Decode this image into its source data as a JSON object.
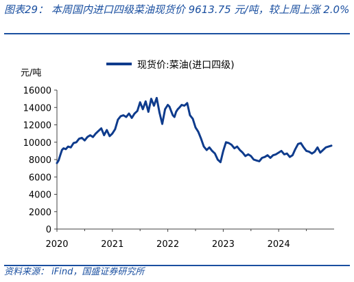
{
  "figure": {
    "title": "图表29： 本周国内进口四级菜油现货价 9613.75 元/吨，较上周上涨 2.0%",
    "source": "资料来源： iFind，国盛证券研究所"
  },
  "colors": {
    "series": "#0e3b8c",
    "accent": "#1a4fa0",
    "axis": "#404040"
  },
  "chart_data": {
    "type": "line",
    "title": "",
    "xlabel": "",
    "ylabel": "元/吨",
    "ylim": [
      0,
      16000
    ],
    "xlim": [
      2020.0,
      2025.0
    ],
    "yticks": [
      0,
      2000,
      4000,
      6000,
      8000,
      10000,
      12000,
      14000,
      16000
    ],
    "xticks": [
      2020,
      2021,
      2022,
      2023,
      2024
    ],
    "legend_position": "top-center",
    "grid": false,
    "series": [
      {
        "name": "现货价:菜油(进口四级)",
        "x": [
          2020.0,
          2020.03,
          2020.06,
          2020.09,
          2020.12,
          2020.16,
          2020.2,
          2020.25,
          2020.3,
          2020.35,
          2020.4,
          2020.45,
          2020.5,
          2020.55,
          2020.6,
          2020.65,
          2020.7,
          2020.75,
          2020.8,
          2020.85,
          2020.9,
          2020.95,
          2021.0,
          2021.05,
          2021.1,
          2021.15,
          2021.2,
          2021.25,
          2021.3,
          2021.35,
          2021.4,
          2021.45,
          2021.5,
          2021.55,
          2021.6,
          2021.65,
          2021.7,
          2021.75,
          2021.8,
          2021.85,
          2021.9,
          2021.95,
          2022.0,
          2022.03,
          2022.06,
          2022.09,
          2022.12,
          2022.15,
          2022.18,
          2022.21,
          2022.25,
          2022.3,
          2022.35,
          2022.4,
          2022.45,
          2022.5,
          2022.55,
          2022.6,
          2022.65,
          2022.7,
          2022.75,
          2022.8,
          2022.85,
          2022.9,
          2022.95,
          2023.0,
          2023.05,
          2023.1,
          2023.15,
          2023.2,
          2023.25,
          2023.3,
          2023.35,
          2023.4,
          2023.45,
          2023.5,
          2023.55,
          2023.6,
          2023.65,
          2023.7,
          2023.75,
          2023.8,
          2023.85,
          2023.9,
          2023.95,
          2024.0,
          2024.05,
          2024.1,
          2024.15,
          2024.2,
          2024.25,
          2024.3,
          2024.35,
          2024.4,
          2024.45,
          2024.5,
          2024.55,
          2024.6,
          2024.65,
          2024.7,
          2024.75,
          2024.8,
          2024.85,
          2024.9,
          2024.95
        ],
        "values": [
          7600,
          7900,
          8500,
          9100,
          9300,
          9200,
          9500,
          9400,
          9900,
          10000,
          10400,
          10500,
          10200,
          10600,
          10800,
          10600,
          11000,
          11300,
          11600,
          10800,
          11400,
          10700,
          11000,
          11500,
          12600,
          13000,
          13100,
          12900,
          13300,
          12800,
          13300,
          13600,
          14600,
          13800,
          14700,
          13500,
          15000,
          14200,
          15100,
          13400,
          12100,
          13800,
          14300,
          14100,
          13600,
          13100,
          12900,
          13500,
          13800,
          14000,
          14300,
          14200,
          14500,
          13100,
          12700,
          11700,
          11200,
          10400,
          9500,
          9100,
          9400,
          9000,
          8700,
          8000,
          7700,
          9000,
          10000,
          9900,
          9700,
          9300,
          9500,
          9100,
          8800,
          8400,
          8600,
          8400,
          8000,
          7900,
          7800,
          8200,
          8300,
          8500,
          8200,
          8500,
          8600,
          8800,
          9000,
          8600,
          8700,
          8300,
          8500,
          9200,
          9800,
          9900,
          9400,
          9000,
          8900,
          8700,
          8900,
          9400,
          8800,
          9100,
          9400,
          9500,
          9600
        ]
      }
    ]
  }
}
